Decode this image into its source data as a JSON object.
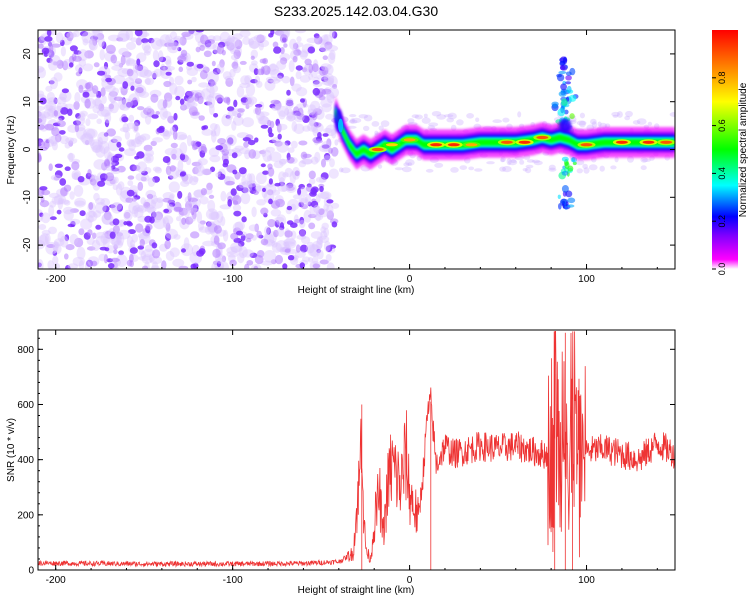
{
  "title": "S233.2025.142.03.04.G30",
  "chart_data": [
    {
      "type": "heatmap",
      "xlabel": "Height of straight line (km)",
      "ylabel": "Frequency (Hz)",
      "xlim": [
        -210,
        150
      ],
      "ylim": [
        -25,
        25
      ],
      "xticks": [
        -200,
        -100,
        0,
        100
      ],
      "yticks": [
        -20,
        -10,
        0,
        10,
        20
      ],
      "grid": false,
      "colorbar": {
        "label": "Normalized spectral amplitude",
        "range": [
          0,
          1
        ],
        "ticks": [
          0.0,
          0.2,
          0.4,
          0.6,
          0.8
        ],
        "colors": [
          "#ffffff",
          "#ff00ff",
          "#7f00ff",
          "#0000ff",
          "#00ffff",
          "#00ff00",
          "#ffff00",
          "#ff7f00",
          "#ff0000"
        ]
      },
      "noise_region_x": [
        -210,
        -42
      ],
      "ridge_center": [
        [
          -42,
          8
        ],
        [
          -38,
          4
        ],
        [
          -34,
          1
        ],
        [
          -30,
          -1
        ],
        [
          -26,
          0
        ],
        [
          -22,
          -1
        ],
        [
          -18,
          0
        ],
        [
          -14,
          1
        ],
        [
          -10,
          0
        ],
        [
          -6,
          1
        ],
        [
          -2,
          2
        ],
        [
          0,
          2
        ],
        [
          4,
          2
        ],
        [
          8,
          1
        ],
        [
          12,
          1
        ],
        [
          20,
          1
        ],
        [
          30,
          1
        ],
        [
          40,
          1.5
        ],
        [
          50,
          1.5
        ],
        [
          60,
          1.5
        ],
        [
          70,
          2
        ],
        [
          75,
          2.5
        ],
        [
          80,
          2
        ],
        [
          85,
          2.5
        ],
        [
          90,
          2
        ],
        [
          95,
          1
        ],
        [
          100,
          1
        ],
        [
          110,
          1.5
        ],
        [
          120,
          1.5
        ],
        [
          130,
          1.5
        ],
        [
          150,
          1.5
        ]
      ],
      "hot_spots": [
        [
          -18,
          0,
          0.9
        ],
        [
          -10,
          1,
          0.75
        ],
        [
          0,
          2,
          0.8
        ],
        [
          15,
          1,
          0.95
        ],
        [
          25,
          1,
          0.95
        ],
        [
          35,
          1,
          0.8
        ],
        [
          55,
          1.5,
          0.9
        ],
        [
          65,
          1.5,
          0.95
        ],
        [
          75,
          2.5,
          0.9
        ],
        [
          100,
          1,
          0.9
        ],
        [
          120,
          1.5,
          0.95
        ],
        [
          135,
          1.5,
          0.95
        ],
        [
          145,
          1.5,
          0.9
        ]
      ],
      "scatter_plume": [
        [
          88,
          17,
          0.25
        ],
        [
          90,
          12,
          0.3
        ],
        [
          86,
          8,
          0.35
        ],
        [
          88,
          5,
          0.5
        ],
        [
          90,
          -4,
          0.45
        ],
        [
          88,
          -10,
          0.3
        ]
      ]
    },
    {
      "type": "line",
      "xlabel": "Height of straight line (km)",
      "ylabel": "SNR (10 * v/v)",
      "xlim": [
        -210,
        150
      ],
      "ylim": [
        0,
        870
      ],
      "xticks": [
        -200,
        -100,
        0,
        100
      ],
      "yticks": [
        0,
        200,
        400,
        600,
        800
      ],
      "grid": false,
      "color": "#ee3333",
      "x": [
        -210,
        -150,
        -100,
        -60,
        -40,
        -32,
        -28,
        -27,
        -26,
        -25,
        -24,
        -22,
        -20,
        -17,
        -15,
        -12,
        -10,
        -5,
        -2,
        0,
        5,
        8,
        10,
        12,
        15,
        20,
        25,
        30,
        40,
        50,
        60,
        70,
        75,
        80,
        82,
        85,
        88,
        90,
        92,
        95,
        100,
        110,
        120,
        130,
        140,
        150
      ],
      "y": [
        25,
        22,
        22,
        24,
        30,
        60,
        350,
        600,
        200,
        100,
        60,
        40,
        170,
        280,
        120,
        320,
        380,
        300,
        420,
        280,
        180,
        380,
        560,
        610,
        380,
        450,
        420,
        430,
        450,
        440,
        450,
        430,
        420,
        420,
        710,
        320,
        860,
        150,
        640,
        380,
        430,
        440,
        420,
        400,
        460,
        420
      ]
    }
  ]
}
